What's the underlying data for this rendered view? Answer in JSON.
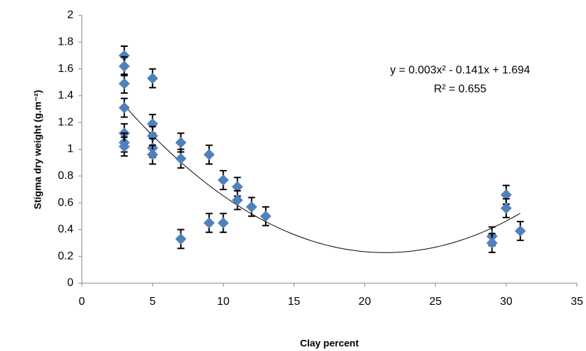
{
  "chart_data": {
    "type": "scatter",
    "x_label": "Clay percent",
    "y_label": "Stigma dry weight (g.m⁻²)",
    "annotations": [
      "y = 0.003x² - 0.141x + 1.694",
      "R² = 0.655"
    ],
    "x": [
      3,
      3,
      3,
      3,
      3,
      3,
      3,
      5,
      5,
      5,
      5,
      5,
      7,
      7,
      7,
      9,
      9,
      10,
      10,
      11,
      11,
      12,
      13,
      29,
      29,
      30,
      30,
      31
    ],
    "values": [
      1.7,
      1.62,
      1.49,
      1.31,
      1.12,
      1.05,
      1.02,
      1.53,
      1.19,
      1.1,
      1.01,
      0.96,
      1.05,
      0.93,
      0.33,
      0.96,
      0.45,
      0.77,
      0.45,
      0.72,
      0.62,
      0.57,
      0.5,
      0.35,
      0.3,
      0.66,
      0.56,
      0.39
    ],
    "errors": [
      0.07,
      0.07,
      0.07,
      0.07,
      0.07,
      0.07,
      0.07,
      0.07,
      0.07,
      0.07,
      0.07,
      0.07,
      0.07,
      0.07,
      0.07,
      0.07,
      0.07,
      0.07,
      0.07,
      0.07,
      0.07,
      0.07,
      0.07,
      0.07,
      0.07,
      0.07,
      0.07,
      0.07
    ],
    "color": "#4f81bd",
    "xlim": [
      0,
      35
    ],
    "xticks": [
      0,
      5,
      10,
      15,
      20,
      25,
      30,
      35
    ],
    "ylim": [
      0,
      2
    ],
    "yticks": [
      0,
      0.2,
      0.4,
      0.6,
      0.8,
      1,
      1.2,
      1.4,
      1.6,
      1.8,
      2
    ],
    "trendline": "quadratic"
  }
}
